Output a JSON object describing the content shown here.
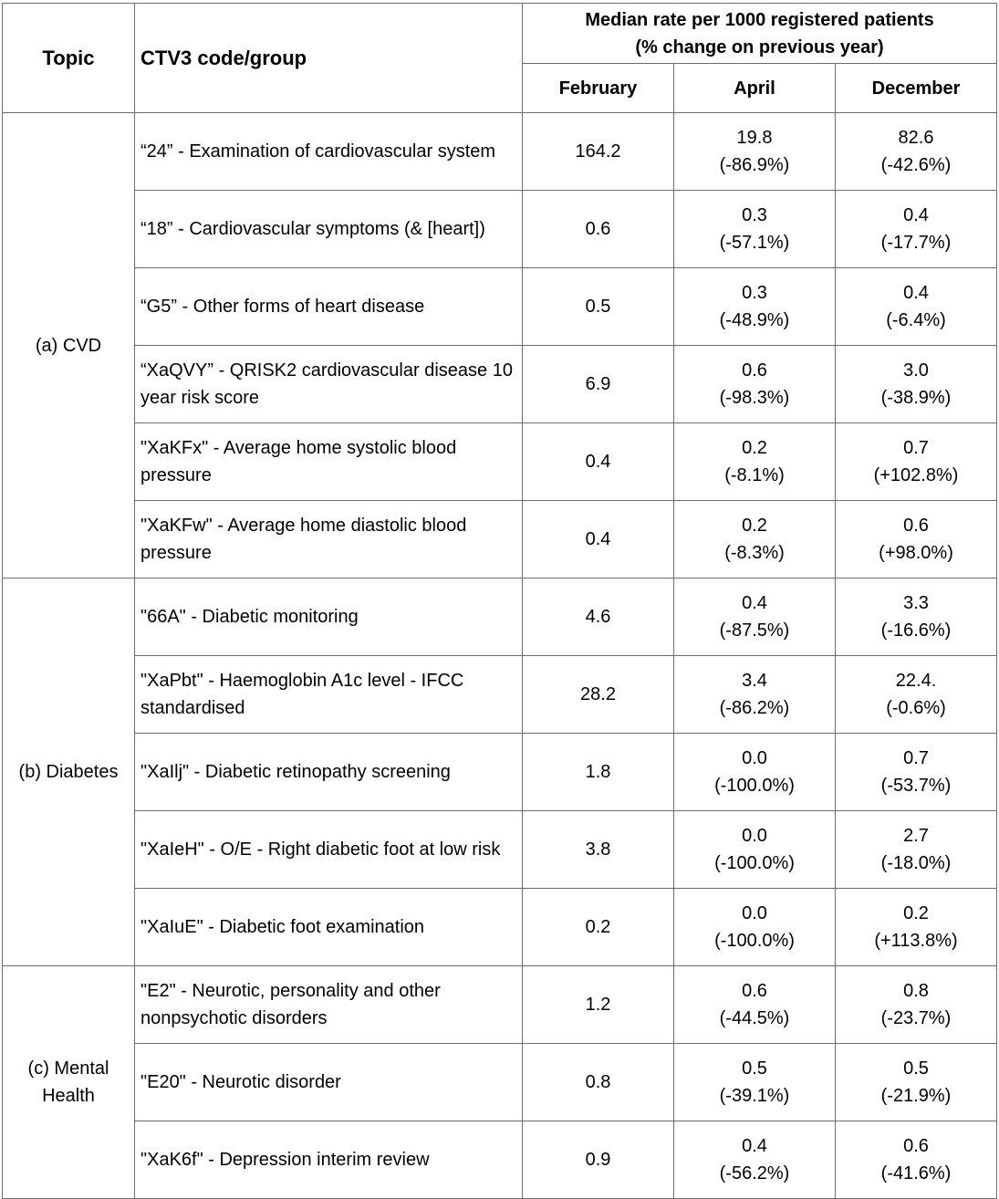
{
  "headers": {
    "topic": "Topic",
    "code": "CTV3 code/group",
    "median_line1": "Median rate per 1000 registered patients",
    "median_line2": "(% change on previous year)",
    "months": [
      "February",
      "April",
      "December"
    ]
  },
  "groups": [
    {
      "topic": "(a) CVD",
      "rows": [
        {
          "code": "“24” - Examination of cardiovascular system",
          "feb": "164.2",
          "apr": "19.8",
          "apr_change": "(-86.9%)",
          "dec": "82.6",
          "dec_change": "(-42.6%)"
        },
        {
          "code": "“18” - Cardiovascular symptoms (& [heart])",
          "feb": "0.6",
          "apr": "0.3",
          "apr_change": "(-57.1%)",
          "dec": "0.4",
          "dec_change": "(-17.7%)"
        },
        {
          "code": "“G5” - Other forms of heart disease",
          "feb": "0.5",
          "apr": "0.3",
          "apr_change": "(-48.9%)",
          "dec": "0.4",
          "dec_change": "(-6.4%)"
        },
        {
          "code": "“XaQVY” - QRISK2 cardiovascular disease 10 year risk score",
          "feb": "6.9",
          "apr": "0.6",
          "apr_change": "(-98.3%)",
          "dec": "3.0",
          "dec_change": "(-38.9%)"
        },
        {
          "code": "\"XaKFx\" - Average home systolic blood pressure",
          "feb": "0.4",
          "apr": "0.2",
          "apr_change": "(-8.1%)",
          "dec": "0.7",
          "dec_change": "(+102.8%)"
        },
        {
          "code": "\"XaKFw\" - Average home diastolic blood pressure",
          "feb": "0.4",
          "apr": "0.2",
          "apr_change": "(-8.3%)",
          "dec": "0.6",
          "dec_change": "(+98.0%)"
        }
      ]
    },
    {
      "topic": "(b) Diabetes",
      "rows": [
        {
          "code": "\"66A\" - Diabetic monitoring",
          "feb": "4.6",
          "apr": "0.4",
          "apr_change": "(-87.5%)",
          "dec": "3.3",
          "dec_change": "(-16.6%)"
        },
        {
          "code": "\"XaPbt\" - Haemoglobin A1c level - IFCC standardised",
          "feb": "28.2",
          "apr": "3.4",
          "apr_change": "(-86.2%)",
          "dec": "22.4.",
          "dec_change": "(-0.6%)"
        },
        {
          "code": "\"XaIlj\" - Diabetic retinopathy screening",
          "feb": "1.8",
          "apr": "0.0",
          "apr_change": "(-100.0%)",
          "dec": "0.7",
          "dec_change": "(-53.7%)"
        },
        {
          "code": "\"XaIeH\" - O/E - Right diabetic foot at low risk",
          "feb": "3.8",
          "apr": "0.0",
          "apr_change": "(-100.0%)",
          "dec": "2.7",
          "dec_change": "(-18.0%)"
        },
        {
          "code": "\"XaIuE\" - Diabetic foot examination",
          "feb": "0.2",
          "apr": "0.0",
          "apr_change": "(-100.0%)",
          "dec": "0.2",
          "dec_change": "(+113.8%)"
        }
      ]
    },
    {
      "topic": "(c) Mental Health",
      "rows": [
        {
          "code": "\"E2\" - Neurotic, personality and other nonpsychotic disorders",
          "feb": "1.2",
          "apr": "0.6",
          "apr_change": "(-44.5%)",
          "dec": "0.8",
          "dec_change": "(-23.7%)"
        },
        {
          "code": "\"E20\" - Neurotic disorder",
          "feb": "0.8",
          "apr": "0.5",
          "apr_change": "(-39.1%)",
          "dec": "0.5",
          "dec_change": "(-21.9%)"
        },
        {
          "code": "\"XaK6f\" - Depression interim review",
          "feb": "0.9",
          "apr": "0.4",
          "apr_change": "(-56.2%)",
          "dec": "0.6",
          "dec_change": "(-41.6%)"
        }
      ]
    }
  ]
}
